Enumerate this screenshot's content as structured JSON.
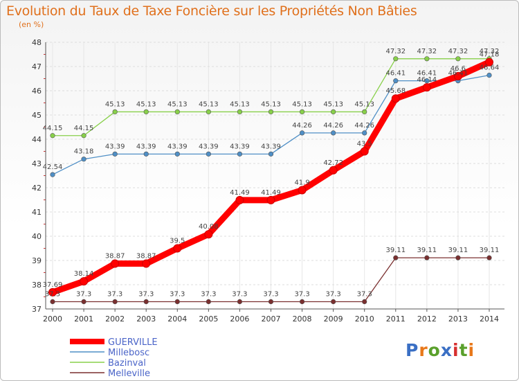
{
  "header": {
    "title": "Evolution du Taux de Taxe Foncière sur les Propriétés Non Bâties",
    "subtitle": "(en %)"
  },
  "logo": {
    "text": "Proxiti",
    "colors": [
      "#3a6fc4",
      "#e8781a",
      "#5aa02c",
      "#3a6fc4",
      "#d62f2f",
      "#5aa02c",
      "#e8781a"
    ]
  },
  "chart_data": {
    "type": "line",
    "title": "Evolution du Taux de Taxe Foncière sur les Propriétés Non Bâties",
    "ylabel": "(en %)",
    "xlabel": "",
    "ylim": [
      37,
      48
    ],
    "yticks": [
      37,
      38,
      39,
      40,
      41,
      42,
      43,
      44,
      45,
      46,
      47,
      48
    ],
    "x": [
      "2000",
      "2001",
      "2002",
      "2003",
      "2004",
      "2005",
      "2006",
      "2007",
      "2008",
      "2009",
      "2010",
      "2011",
      "2012",
      "2013",
      "2014"
    ],
    "legend_position": "bottom-left",
    "series": [
      {
        "name": "GUERVILLE",
        "color": "#ff0000",
        "values": [
          37.69,
          38.14,
          38.87,
          38.87,
          39.5,
          40.08,
          41.49,
          41.49,
          41.9,
          42.72,
          43.5,
          45.68,
          46.14,
          46.6,
          47.18
        ],
        "labels": [
          "37.69",
          "38.14",
          "38.87",
          "38.87",
          "39.5",
          "40.08",
          "41.49",
          "41.49",
          "41.9",
          "42.72",
          "43.5",
          "45.68",
          "46.14",
          "46.6",
          "47.18"
        ]
      },
      {
        "name": "Millebosc",
        "color": "#4f8fc6",
        "values": [
          42.54,
          43.18,
          43.39,
          43.39,
          43.39,
          43.39,
          43.39,
          43.39,
          44.26,
          44.26,
          44.26,
          46.41,
          46.41,
          46.41,
          46.64
        ],
        "labels": [
          "42.54",
          "43.18",
          "43.39",
          "43.39",
          "43.39",
          "43.39",
          "43.39",
          "43.39",
          "44.26",
          "44.26",
          "44.26",
          "46.41",
          "46.41",
          "46.41",
          "46.64"
        ]
      },
      {
        "name": "Bazinval",
        "color": "#88d04a",
        "values": [
          44.15,
          44.15,
          45.13,
          45.13,
          45.13,
          45.13,
          45.13,
          45.13,
          45.13,
          45.13,
          45.13,
          47.32,
          47.32,
          47.32,
          47.32
        ],
        "labels": [
          "44.15",
          "44.15",
          "45.13",
          "45.13",
          "45.13",
          "45.13",
          "45.13",
          "45.13",
          "45.13",
          "45.13",
          "45.13",
          "47.32",
          "47.32",
          "47.32",
          "47.32"
        ]
      },
      {
        "name": "Melleville",
        "color": "#7a2f2f",
        "values": [
          37.3,
          37.3,
          37.3,
          37.3,
          37.3,
          37.3,
          37.3,
          37.3,
          37.3,
          37.3,
          37.3,
          39.11,
          39.11,
          39.11,
          39.11
        ],
        "labels": [
          "37.3",
          "37.3",
          "37.3",
          "37.3",
          "37.3",
          "37.3",
          "37.3",
          "37.3",
          "37.3",
          "37.3",
          "37.3",
          "39.11",
          "39.11",
          "39.11",
          "39.11"
        ]
      }
    ]
  }
}
